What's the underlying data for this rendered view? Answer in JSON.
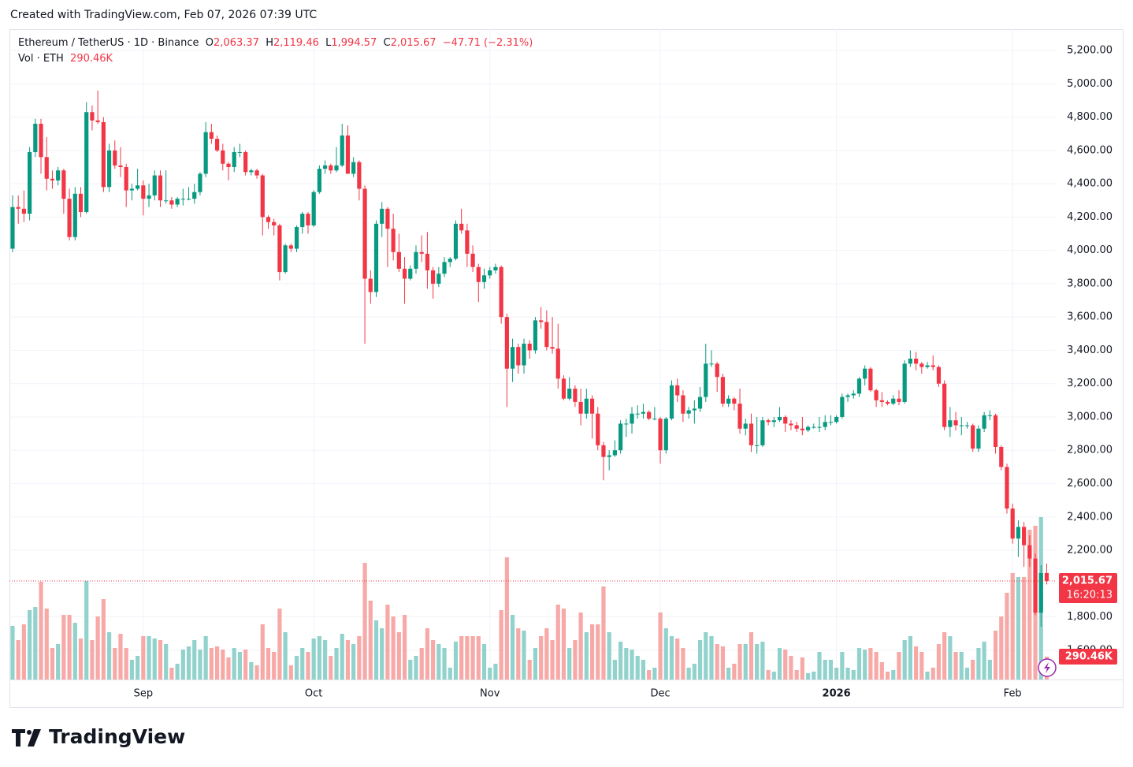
{
  "header": {
    "created": "Created with TradingView.com, Feb 07, 2026 07:39 UTC"
  },
  "footer": {
    "brand": "TradingView"
  },
  "chart_data": {
    "type": "candlestick",
    "symbol": "Ethereum / TetherUS · 1D · Binance",
    "ohlc_legend": [
      {
        "key": "O",
        "text": "2,063.37"
      },
      {
        "key": "H",
        "text": "2,119.46"
      },
      {
        "key": "L",
        "text": "1,994.57"
      },
      {
        "key": "C",
        "text": "2,015.67"
      }
    ],
    "change": "−47.71 (−2.31%)",
    "volume_legend": "Vol · ETH",
    "last_volume_label": "290.46K",
    "last_price": {
      "value": 2015.67,
      "label": "2,015.67"
    },
    "countdown": "16:20:13",
    "up_color": "#089981",
    "down_color": "#f23645",
    "volume_up_color": "#92d2cc",
    "volume_down_color": "#f7a9a7",
    "grid": true,
    "xlim": [
      -0.55,
      183.6
    ],
    "xticks": [
      {
        "value": 23,
        "label": "Sep"
      },
      {
        "value": 53,
        "label": "Oct"
      },
      {
        "value": 84,
        "label": "Nov"
      },
      {
        "value": 114,
        "label": "Dec"
      },
      {
        "value": 145,
        "label": "2026"
      },
      {
        "value": 176,
        "label": "Feb"
      }
    ],
    "ylim": [
      1424,
      5328
    ],
    "yticks": [
      {
        "value": 1600,
        "label": "1,600.00"
      },
      {
        "value": 1800,
        "label": "1,800.00"
      },
      {
        "value": 2000,
        "label": "2,000.00"
      },
      {
        "value": 2200,
        "label": "2,200.00"
      },
      {
        "value": 2400,
        "label": "2,400.00"
      },
      {
        "value": 2600,
        "label": "2,600.00"
      },
      {
        "value": 2800,
        "label": "2,800.00"
      },
      {
        "value": 3000,
        "label": "3,000.00"
      },
      {
        "value": 3200,
        "label": "3,200.00"
      },
      {
        "value": 3400,
        "label": "3,400.00"
      },
      {
        "value": 3600,
        "label": "3,600.00"
      },
      {
        "value": 3800,
        "label": "3,800.00"
      },
      {
        "value": 4000,
        "label": "4,000.00"
      },
      {
        "value": 4200,
        "label": "4,200.00"
      },
      {
        "value": 4400,
        "label": "4,400.00"
      },
      {
        "value": 4600,
        "label": "4,600.00"
      },
      {
        "value": 4800,
        "label": "4,800.00"
      },
      {
        "value": 5000,
        "label": "5,000.00"
      },
      {
        "value": 5200,
        "label": "5,200.00"
      }
    ],
    "volume_ylim": [
      0,
      3000000
    ],
    "open": [
      4010,
      4260,
      4250,
      4220,
      4590,
      4760,
      4560,
      4430,
      4420,
      4480,
      4310,
      4080,
      4340,
      4230,
      4830,
      4780,
      4770,
      4380,
      4600,
      4510,
      4500,
      4360,
      4370,
      4390,
      4310,
      4330,
      4450,
      4300,
      4300,
      4275,
      4310,
      4310,
      4310,
      4350,
      4460,
      4710,
      4670,
      4600,
      4520,
      4500,
      4590,
      4590,
      4470,
      4480,
      4450,
      4200,
      4170,
      4150,
      3870,
      4030,
      4010,
      4140,
      4220,
      4150,
      4350,
      4490,
      4510,
      4480,
      4510,
      4690,
      4460,
      4530,
      4370,
      3830,
      3750,
      4160,
      4250,
      4130,
      3990,
      3890,
      3830,
      3890,
      3990,
      3980,
      3880,
      3800,
      3860,
      3930,
      3950,
      4160,
      4120,
      3980,
      3900,
      3810,
      3850,
      3880,
      3900,
      3600,
      3290,
      3420,
      3310,
      3440,
      3400,
      3580,
      3570,
      3420,
      3410,
      3230,
      3110,
      3170,
      3090,
      3020,
      3110,
      3020,
      2830,
      2760,
      2770,
      2800,
      2960,
      2960,
      3020,
      3020,
      3030,
      2990,
      2990,
      2800,
      2990,
      3190,
      3130,
      3020,
      3040,
      3050,
      3120,
      3320,
      3320,
      3240,
      3080,
      3110,
      3080,
      2930,
      2960,
      2830,
      2830,
      2980,
      2970,
      2980,
      3000,
      2960,
      2950,
      2930,
      2920,
      2940,
      2940,
      2940,
      2970,
      2970,
      3000,
      3120,
      3130,
      3140,
      3230,
      3290,
      3160,
      3100,
      3090,
      3080,
      3110,
      3090,
      3320,
      3350,
      3320,
      3300,
      3310,
      3300,
      3200,
      2940,
      2980,
      2950,
      2950,
      2950,
      2810,
      2930,
      3010,
      3010,
      2820,
      2700,
      2450,
      2270,
      2340,
      2230,
      2150,
      1825,
      2063.37
    ],
    "high": [
      4330,
      4330,
      4360,
      4620,
      4790,
      4790,
      4680,
      4480,
      4500,
      4490,
      4370,
      4380,
      4380,
      4890,
      4870,
      4960,
      4800,
      4640,
      4660,
      4620,
      4520,
      4400,
      4490,
      4420,
      4400,
      4480,
      4480,
      4480,
      4320,
      4320,
      4370,
      4380,
      4400,
      4470,
      4770,
      4760,
      4690,
      4640,
      4530,
      4620,
      4640,
      4600,
      4490,
      4490,
      4460,
      4210,
      4190,
      4160,
      4040,
      4040,
      4150,
      4230,
      4230,
      4360,
      4510,
      4540,
      4520,
      4620,
      4760,
      4750,
      4560,
      4540,
      4390,
      3880,
      4180,
      4290,
      4260,
      4220,
      4100,
      3960,
      3910,
      4030,
      4090,
      4110,
      3900,
      3900,
      3960,
      3960,
      4180,
      4250,
      4160,
      4030,
      3920,
      3890,
      3900,
      3920,
      3910,
      3620,
      3470,
      3440,
      3470,
      3460,
      3600,
      3660,
      3640,
      3600,
      3560,
      3250,
      3240,
      3190,
      3170,
      3170,
      3130,
      3060,
      2850,
      2800,
      2860,
      2980,
      2990,
      3060,
      3070,
      3080,
      3040,
      3060,
      3000,
      3000,
      3220,
      3230,
      3160,
      3060,
      3100,
      3180,
      3440,
      3400,
      3330,
      3260,
      3130,
      3120,
      3170,
      2990,
      3020,
      3000,
      3000,
      2990,
      3000,
      3060,
      3010,
      2980,
      2970,
      3000,
      2950,
      2960,
      3000,
      3010,
      3010,
      3010,
      3140,
      3140,
      3160,
      3240,
      3310,
      3300,
      3170,
      3150,
      3100,
      3130,
      3160,
      3340,
      3400,
      3390,
      3330,
      3330,
      3370,
      3310,
      3220,
      3060,
      3030,
      3000,
      2970,
      2960,
      2950,
      3030,
      3040,
      3020,
      2830,
      2720,
      2480,
      2380,
      2370,
      2290,
      2180,
      2110,
      2119.46
    ],
    "low": [
      3990,
      4160,
      4170,
      4180,
      4560,
      4460,
      4360,
      4370,
      4390,
      4220,
      4060,
      4060,
      4200,
      4220,
      4720,
      4760,
      4350,
      4350,
      4490,
      4440,
      4260,
      4300,
      4360,
      4210,
      4260,
      4300,
      4260,
      4280,
      4250,
      4260,
      4270,
      4300,
      4280,
      4330,
      4440,
      4640,
      4590,
      4480,
      4420,
      4470,
      4560,
      4450,
      4450,
      4430,
      4090,
      4130,
      4090,
      3820,
      3860,
      3990,
      3990,
      4100,
      4100,
      4140,
      4340,
      4460,
      4460,
      4470,
      4500,
      4460,
      4440,
      4300,
      3440,
      3680,
      3720,
      4080,
      3900,
      3940,
      3870,
      3680,
      3820,
      3860,
      3930,
      3770,
      3710,
      3780,
      3840,
      3900,
      3940,
      4100,
      3900,
      3870,
      3690,
      3770,
      3830,
      3860,
      3560,
      3060,
      3210,
      3260,
      3260,
      3350,
      3380,
      3530,
      3400,
      3380,
      3170,
      3100,
      3100,
      3060,
      2950,
      2990,
      2870,
      2800,
      2620,
      2680,
      2760,
      2780,
      2880,
      2900,
      2990,
      2990,
      2980,
      2980,
      2720,
      2780,
      2980,
      3090,
      2970,
      2990,
      2960,
      3030,
      3090,
      3300,
      3150,
      3060,
      3060,
      3040,
      2900,
      2890,
      2790,
      2780,
      2820,
      2950,
      2940,
      2970,
      2910,
      2920,
      2910,
      2890,
      2910,
      2930,
      2910,
      2920,
      2950,
      2960,
      2990,
      3090,
      3110,
      3120,
      3190,
      3150,
      3060,
      3060,
      3070,
      3070,
      3070,
      3080,
      3300,
      3280,
      3260,
      3290,
      3280,
      3180,
      2920,
      2880,
      2920,
      2890,
      2930,
      2790,
      2790,
      2910,
      2980,
      2780,
      2680,
      2420,
      2240,
      2160,
      2100,
      2100,
      1810,
      1740,
      1994.57
    ],
    "close": [
      4260,
      4250,
      4220,
      4590,
      4760,
      4560,
      4430,
      4420,
      4480,
      4310,
      4080,
      4340,
      4230,
      4830,
      4780,
      4770,
      4380,
      4600,
      4510,
      4500,
      4360,
      4370,
      4390,
      4310,
      4330,
      4450,
      4300,
      4300,
      4275,
      4310,
      4310,
      4310,
      4350,
      4460,
      4710,
      4670,
      4600,
      4520,
      4500,
      4590,
      4590,
      4470,
      4480,
      4450,
      4200,
      4170,
      4150,
      3870,
      4030,
      4010,
      4140,
      4220,
      4150,
      4350,
      4490,
      4510,
      4480,
      4510,
      4690,
      4460,
      4530,
      4370,
      3830,
      3750,
      4160,
      4250,
      4130,
      3990,
      3890,
      3830,
      3890,
      3990,
      3980,
      3880,
      3800,
      3860,
      3930,
      3950,
      4160,
      4120,
      3980,
      3900,
      3810,
      3850,
      3880,
      3900,
      3600,
      3290,
      3420,
      3310,
      3440,
      3400,
      3580,
      3570,
      3420,
      3410,
      3230,
      3110,
      3170,
      3090,
      3020,
      3110,
      3020,
      2830,
      2760,
      2770,
      2800,
      2960,
      2960,
      3020,
      3020,
      3030,
      2990,
      2990,
      2800,
      2990,
      3190,
      3130,
      3020,
      3040,
      3050,
      3120,
      3320,
      3320,
      3240,
      3080,
      3110,
      3080,
      2930,
      2960,
      2830,
      2830,
      2980,
      2970,
      2980,
      3000,
      2960,
      2950,
      2930,
      2920,
      2940,
      2940,
      2940,
      2970,
      2970,
      3000,
      3120,
      3130,
      3140,
      3230,
      3290,
      3160,
      3100,
      3090,
      3080,
      3110,
      3090,
      3320,
      3350,
      3320,
      3300,
      3310,
      3300,
      3200,
      2940,
      2980,
      2950,
      2950,
      2950,
      2810,
      2930,
      3010,
      3010,
      2820,
      2700,
      2450,
      2270,
      2340,
      2230,
      2150,
      1825,
      2063.37,
      2015.67
    ],
    "volume": [
      680000,
      500000,
      700000,
      880000,
      920000,
      1240000,
      900000,
      400000,
      450000,
      820000,
      820000,
      720000,
      520000,
      1250000,
      500000,
      800000,
      1020000,
      600000,
      400000,
      580000,
      400000,
      250000,
      300000,
      550000,
      550000,
      520000,
      500000,
      450000,
      150000,
      200000,
      380000,
      420000,
      500000,
      380000,
      550000,
      400000,
      420000,
      380000,
      280000,
      400000,
      350000,
      380000,
      220000,
      180000,
      700000,
      400000,
      350000,
      900000,
      600000,
      180000,
      300000,
      400000,
      350000,
      520000,
      550000,
      500000,
      300000,
      400000,
      580000,
      500000,
      450000,
      550000,
      1480000,
      1000000,
      750000,
      650000,
      950000,
      800000,
      600000,
      820000,
      250000,
      300000,
      400000,
      650000,
      500000,
      450000,
      400000,
      150000,
      480000,
      550000,
      550000,
      550000,
      550000,
      450000,
      150000,
      200000,
      880000,
      1550000,
      820000,
      650000,
      620000,
      250000,
      400000,
      550000,
      650000,
      500000,
      950000,
      900000,
      400000,
      500000,
      850000,
      600000,
      700000,
      700000,
      1180000,
      600000,
      250000,
      480000,
      400000,
      380000,
      300000,
      250000,
      120000,
      150000,
      850000,
      650000,
      550000,
      520000,
      400000,
      150000,
      200000,
      500000,
      600000,
      550000,
      450000,
      420000,
      150000,
      200000,
      450000,
      450000,
      600000,
      450000,
      480000,
      120000,
      100000,
      400000,
      380000,
      300000,
      120000,
      280000,
      80000,
      100000,
      350000,
      250000,
      250000,
      150000,
      350000,
      150000,
      120000,
      400000,
      380000,
      400000,
      350000,
      220000,
      100000,
      120000,
      350000,
      500000,
      550000,
      420000,
      350000,
      100000,
      150000,
      450000,
      600000,
      550000,
      350000,
      350000,
      150000,
      250000,
      400000,
      480000,
      250000,
      620000,
      800000,
      1100000,
      1350000,
      1300000,
      1300000,
      1900000,
      1950000,
      2060000,
      290460
    ]
  }
}
